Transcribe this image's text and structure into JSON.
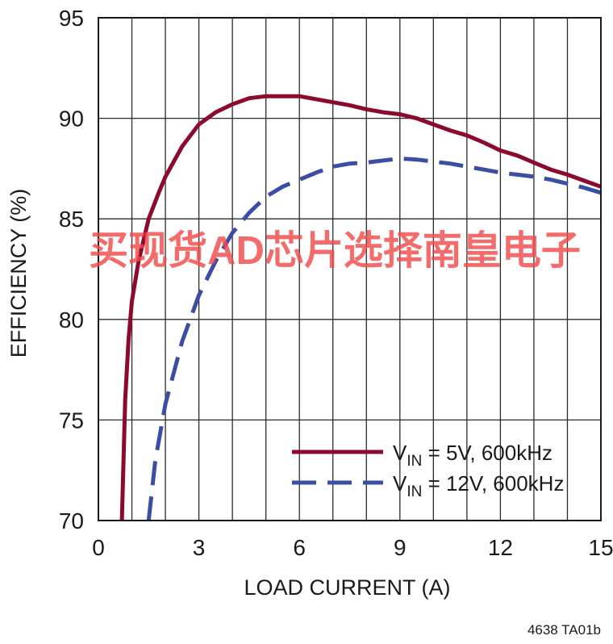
{
  "chart_data": {
    "type": "line",
    "title": "",
    "xlabel": "LOAD CURRENT (A)",
    "ylabel": "EFFICIENCY (%)",
    "xlim": [
      0,
      15
    ],
    "ylim": [
      70,
      95
    ],
    "x_ticks": [
      0,
      3,
      6,
      9,
      12,
      15
    ],
    "y_ticks": [
      70,
      75,
      80,
      85,
      90,
      95
    ],
    "x_minor_step": 1,
    "grid": true,
    "legend_position": "bottom-right",
    "series": [
      {
        "name": "V_IN = 5V, 600kHz",
        "label_main": "V",
        "label_sub": "IN",
        "label_rest": " = 5V, 600kHz",
        "color": "#8b0a2e",
        "dash": "solid",
        "x": [
          0.7,
          0.8,
          0.9,
          1.0,
          1.2,
          1.5,
          1.8,
          2.0,
          2.5,
          3.0,
          3.5,
          4.0,
          4.5,
          5.0,
          5.5,
          6.0,
          6.5,
          7.0,
          7.5,
          8.0,
          8.5,
          9.0,
          9.5,
          10.0,
          10.5,
          11.0,
          11.5,
          12.0,
          12.5,
          13.0,
          13.5,
          14.0,
          14.5,
          15.0
        ],
        "y": [
          70.0,
          76.0,
          79.0,
          80.9,
          82.9,
          85.0,
          86.3,
          87.1,
          88.6,
          89.7,
          90.3,
          90.7,
          91.0,
          91.1,
          91.1,
          91.1,
          90.95,
          90.8,
          90.65,
          90.45,
          90.3,
          90.2,
          90.0,
          89.7,
          89.4,
          89.15,
          88.8,
          88.4,
          88.15,
          87.8,
          87.45,
          87.2,
          86.9,
          86.6
        ]
      },
      {
        "name": "V_IN = 12V, 600kHz",
        "label_main": "V",
        "label_sub": "IN",
        "label_rest": " = 12V, 600kHz",
        "color": "#3a4fa3",
        "dash": "dashed",
        "x": [
          1.5,
          1.7,
          2.0,
          2.5,
          3.0,
          3.5,
          4.0,
          4.5,
          5.0,
          5.5,
          6.0,
          6.5,
          7.0,
          7.5,
          8.0,
          8.5,
          9.0,
          9.5,
          10.0,
          10.5,
          11.0,
          11.5,
          12.0,
          12.5,
          13.0,
          13.5,
          14.0,
          14.5,
          15.0
        ],
        "y": [
          70.0,
          73.0,
          75.8,
          78.9,
          81.2,
          82.9,
          84.3,
          85.3,
          86.1,
          86.6,
          86.95,
          87.3,
          87.6,
          87.75,
          87.8,
          87.9,
          88.0,
          87.95,
          87.85,
          87.75,
          87.6,
          87.45,
          87.3,
          87.2,
          87.1,
          86.95,
          86.75,
          86.55,
          86.3
        ]
      }
    ]
  },
  "watermark": "买现货AD芯片选择南皇电子",
  "figure_id": "4638 TA01b"
}
